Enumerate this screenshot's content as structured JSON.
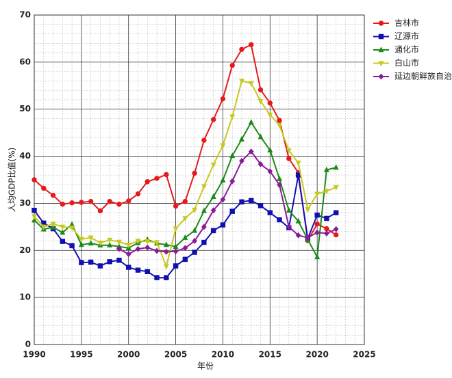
{
  "chart_data": {
    "type": "line",
    "x_label": "年份",
    "y_label": "人均GDP比值(%)",
    "x": [
      1990,
      1991,
      1992,
      1993,
      1994,
      1995,
      1996,
      1997,
      1998,
      1999,
      2000,
      2001,
      2002,
      2003,
      2004,
      2005,
      2006,
      2007,
      2008,
      2009,
      2010,
      2011,
      2012,
      2013,
      2014,
      2015,
      2016,
      2017,
      2018,
      2019,
      2020,
      2021,
      2022
    ],
    "xlim": [
      1990,
      2025
    ],
    "xticks": [
      1990,
      1995,
      2000,
      2005,
      2010,
      2015,
      2020,
      2025
    ],
    "ylim": [
      0,
      70
    ],
    "yticks": [
      0,
      10,
      20,
      30,
      40,
      50,
      60,
      70
    ],
    "grid": true,
    "minor_grid": true,
    "legend": "upper right",
    "series": [
      {
        "name": "吉林市",
        "color": "#e41a1c",
        "marker": "circle",
        "values": [
          35.0,
          33.2,
          31.7,
          29.8,
          30.1,
          30.2,
          30.4,
          28.4,
          30.4,
          29.8,
          30.5,
          32.0,
          34.6,
          35.3,
          36.1,
          29.4,
          30.4,
          36.4,
          43.4,
          47.8,
          52.2,
          59.3,
          62.7,
          63.7,
          54.1,
          51.3,
          47.6,
          39.5,
          36.5,
          22.1,
          25.6,
          24.6,
          23.3
        ]
      },
      {
        "name": "辽源市",
        "color": "#1010b0",
        "marker": "square",
        "values": [
          28.5,
          25.8,
          24.6,
          21.9,
          21.0,
          17.4,
          17.5,
          16.7,
          17.6,
          17.9,
          16.4,
          15.8,
          15.5,
          14.2,
          14.2,
          16.7,
          18.1,
          19.6,
          21.7,
          24.2,
          25.4,
          28.3,
          30.3,
          30.6,
          29.5,
          28.0,
          26.5,
          24.8,
          36.0,
          22.5,
          27.5,
          26.8,
          28.0
        ]
      },
      {
        "name": "通化市",
        "color": "#1a8a1a",
        "marker": "triangle",
        "values": [
          26.4,
          24.5,
          24.9,
          23.8,
          25.5,
          21.2,
          21.5,
          21.1,
          21.1,
          20.8,
          20.5,
          21.6,
          22.3,
          21.5,
          21.2,
          20.8,
          22.7,
          24.2,
          28.4,
          31.4,
          34.9,
          40.1,
          43.6,
          47.2,
          44.1,
          41.3,
          35.2,
          28.5,
          26.2,
          22.3,
          18.6,
          37.1,
          37.6
        ]
      },
      {
        "name": "白山市",
        "color": "#c8c820",
        "marker": "triangle-down",
        "values": [
          27.2,
          25.0,
          25.6,
          25.0,
          24.8,
          22.4,
          22.7,
          21.6,
          22.2,
          21.8,
          21.2,
          22.0,
          21.9,
          21.7,
          16.6,
          24.6,
          26.8,
          28.6,
          33.6,
          38.2,
          42.3,
          48.4,
          56.0,
          55.5,
          51.7,
          48.8,
          46.6,
          41.2,
          38.6,
          28.7,
          32.0,
          32.6,
          33.4
        ]
      },
      {
        "name": "延边朝鲜族自治",
        "color": "#8a1a9a",
        "marker": "diamond",
        "values": [
          null,
          null,
          null,
          null,
          null,
          null,
          null,
          null,
          null,
          20.3,
          19.2,
          20.3,
          20.6,
          19.9,
          19.7,
          19.8,
          20.5,
          22.0,
          25.0,
          28.5,
          30.8,
          34.7,
          39.0,
          41.0,
          38.3,
          36.8,
          33.9,
          25.0,
          23.2,
          22.7,
          23.8,
          23.6,
          24.5
        ]
      }
    ]
  }
}
